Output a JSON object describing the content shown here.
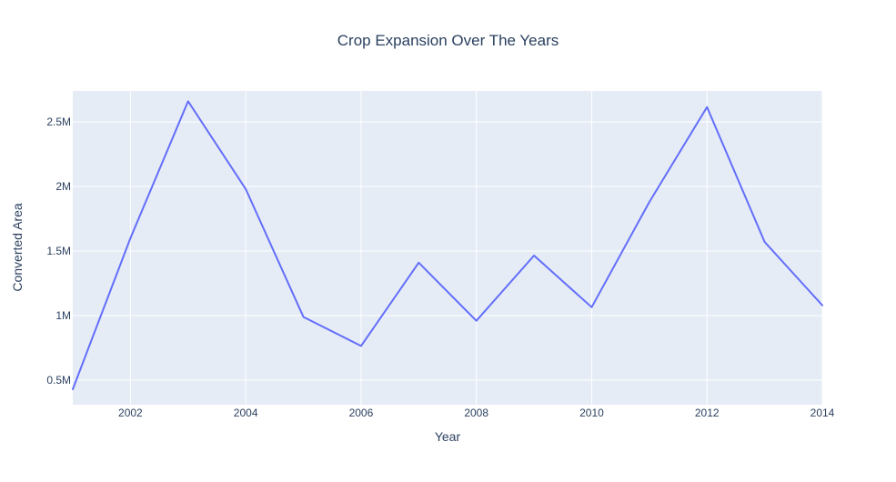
{
  "chart_data": {
    "type": "line",
    "title": "Crop Expansion Over The Years",
    "xlabel": "Year",
    "ylabel": "Converted Area",
    "x": [
      2001,
      2002,
      2003,
      2004,
      2005,
      2006,
      2007,
      2008,
      2009,
      2010,
      2011,
      2012,
      2013,
      2014
    ],
    "series": [
      {
        "values": [
          430000,
          1600000,
          2660000,
          1980000,
          990000,
          765000,
          1410000,
          960000,
          1465000,
          1065000,
          1880000,
          2615000,
          1570000,
          1080000
        ]
      }
    ],
    "xlim": [
      2001,
      2014
    ],
    "ylim": [
      310000,
      2740000
    ],
    "x_ticks": [
      {
        "value": 2002,
        "label": "2002"
      },
      {
        "value": 2004,
        "label": "2004"
      },
      {
        "value": 2006,
        "label": "2006"
      },
      {
        "value": 2008,
        "label": "2008"
      },
      {
        "value": 2010,
        "label": "2010"
      },
      {
        "value": 2012,
        "label": "2012"
      },
      {
        "value": 2014,
        "label": "2014"
      }
    ],
    "y_ticks": [
      {
        "value": 500000,
        "label": "0.5M"
      },
      {
        "value": 1000000,
        "label": "1M"
      },
      {
        "value": 1500000,
        "label": "1.5M"
      },
      {
        "value": 2000000,
        "label": "2M"
      },
      {
        "value": 2500000,
        "label": "2.5M"
      }
    ],
    "grid": true,
    "colors": {
      "background": "#e5ecf6",
      "grid": "#ffffff",
      "line": "#636efa",
      "text": "#2a3f5f"
    }
  }
}
